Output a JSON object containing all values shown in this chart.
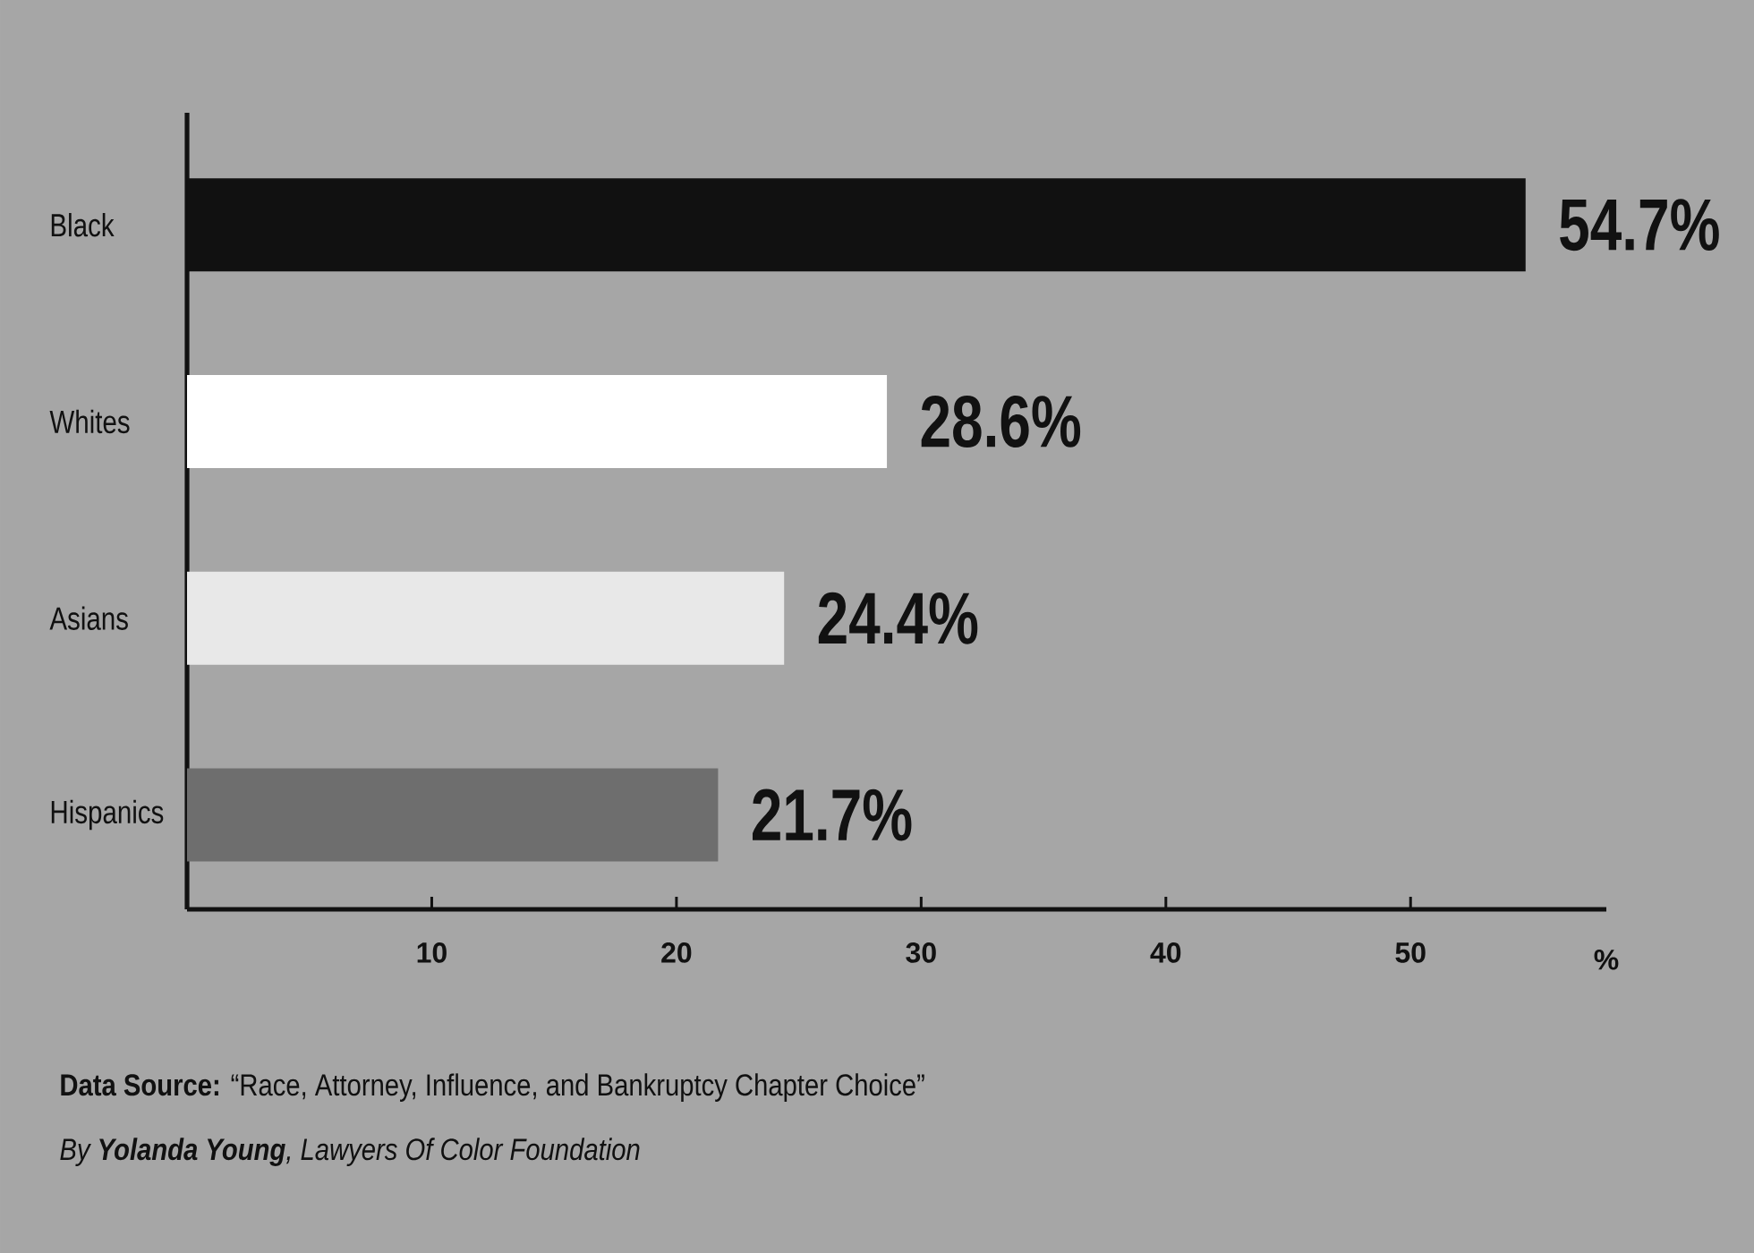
{
  "chart_data": {
    "type": "bar",
    "orientation": "horizontal",
    "categories": [
      "Black",
      "Whites",
      "Asians",
      "Hispanics"
    ],
    "values": [
      54.7,
      28.6,
      24.4,
      21.7
    ],
    "colors": [
      "#111111",
      "#ffffff",
      "#e8e8e8",
      "#6e6e6e"
    ],
    "value_labels": [
      "54.7%",
      "28.6%",
      "24.4%",
      "21.7%"
    ],
    "xlim": [
      0,
      58
    ],
    "xticks": [
      10,
      20,
      30,
      40,
      50
    ],
    "xlabel": "%",
    "annotations": [
      "**Data Source:** “Race, Attorney, Influence, and Bankruptcy Chapter Choice”",
      "By **Yolanda Young**, Lawyers Of Color Foundation"
    ]
  }
}
